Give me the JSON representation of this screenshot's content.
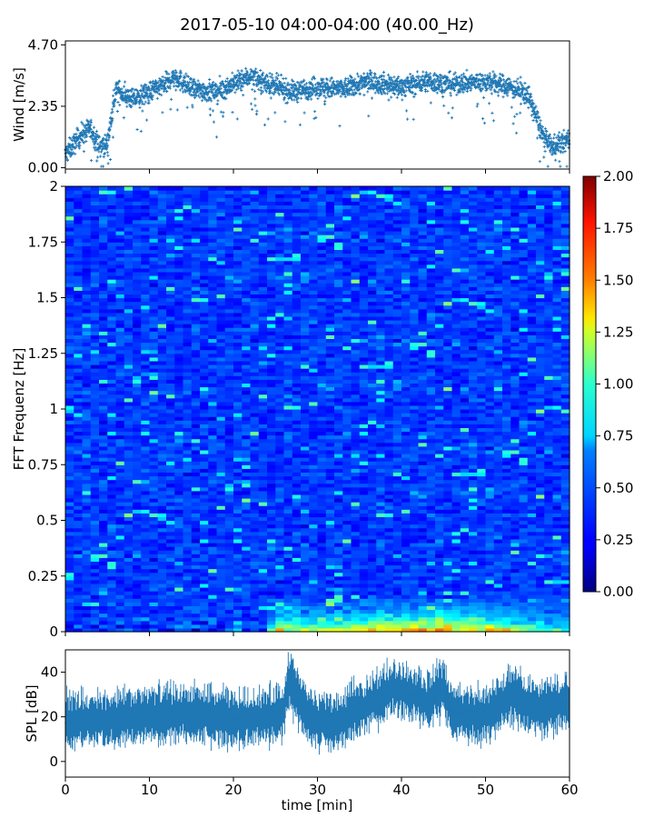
{
  "title": "2017-05-10 04:00-04:00 (40.00_Hz)",
  "chart_data": [
    {
      "type": "scatter",
      "name": "wind-panel",
      "ylabel": "Wind [m/s]",
      "ylim": [
        -0.05,
        4.85
      ],
      "xlim": [
        0,
        60
      ],
      "yticks": [
        0.0,
        2.35,
        4.7
      ],
      "ytick_labels": [
        "0.00",
        "2.35",
        "4.70"
      ],
      "xticks": [
        0,
        10,
        20,
        30,
        40,
        50,
        60
      ],
      "color": "#1f77b4",
      "points_per_min": 45,
      "profile": [
        {
          "x": 0,
          "y": 0.5
        },
        {
          "x": 2,
          "y": 1.3
        },
        {
          "x": 3,
          "y": 1.5
        },
        {
          "x": 4,
          "y": 0.8
        },
        {
          "x": 5,
          "y": 0.9
        },
        {
          "x": 6,
          "y": 3.0
        },
        {
          "x": 8,
          "y": 2.6
        },
        {
          "x": 10,
          "y": 2.9
        },
        {
          "x": 12,
          "y": 3.2
        },
        {
          "x": 13,
          "y": 3.5
        },
        {
          "x": 15,
          "y": 3.0
        },
        {
          "x": 18,
          "y": 2.9
        },
        {
          "x": 20,
          "y": 3.2
        },
        {
          "x": 22,
          "y": 3.5
        },
        {
          "x": 25,
          "y": 3.1
        },
        {
          "x": 27,
          "y": 2.9
        },
        {
          "x": 30,
          "y": 3.1
        },
        {
          "x": 33,
          "y": 3.0
        },
        {
          "x": 36,
          "y": 3.3
        },
        {
          "x": 40,
          "y": 3.1
        },
        {
          "x": 43,
          "y": 3.3
        },
        {
          "x": 46,
          "y": 3.2
        },
        {
          "x": 50,
          "y": 3.3
        },
        {
          "x": 53,
          "y": 3.1
        },
        {
          "x": 55,
          "y": 2.8
        },
        {
          "x": 56,
          "y": 2.0
        },
        {
          "x": 57,
          "y": 1.1
        },
        {
          "x": 58,
          "y": 0.8
        },
        {
          "x": 60,
          "y": 1.1
        }
      ]
    },
    {
      "type": "heatmap",
      "name": "spectrogram-panel",
      "ylabel": "FFT Frequenz [Hz]",
      "xlim": [
        0,
        60
      ],
      "ylim": [
        0,
        2
      ],
      "yticks": [
        0,
        0.25,
        0.5,
        0.75,
        1,
        1.25,
        1.5,
        1.75,
        2
      ],
      "ytick_labels": [
        "0",
        "0.25",
        "0.5",
        "0.75",
        "1",
        "1.25",
        "1.5",
        "1.75",
        "2"
      ],
      "xticks": [
        0,
        10,
        20,
        30,
        40,
        50,
        60
      ],
      "n_time_bins": 60,
      "n_freq_bins": 120,
      "colormap": "jet",
      "colorbar": {
        "vmin": 0,
        "vmax": 2,
        "ticks": [
          0.0,
          0.25,
          0.5,
          0.75,
          1.0,
          1.25,
          1.5,
          1.75,
          2.0
        ],
        "tick_labels": [
          "0.00",
          "0.25",
          "0.50",
          "0.75",
          "1.00",
          "1.25",
          "1.50",
          "1.75",
          "2.00"
        ]
      },
      "low_freq_activity": [
        {
          "x": 0,
          "level": 0.35
        },
        {
          "x": 24,
          "level": 0.4
        },
        {
          "x": 25,
          "level": 1.3
        },
        {
          "x": 30,
          "level": 1.1
        },
        {
          "x": 35,
          "level": 1.4
        },
        {
          "x": 45,
          "level": 1.6
        },
        {
          "x": 52,
          "level": 1.3
        },
        {
          "x": 57,
          "level": 0.9
        },
        {
          "x": 60,
          "level": 0.7
        }
      ]
    },
    {
      "type": "line",
      "name": "spl-panel",
      "ylabel": "SPL [dB]",
      "xlabel": "time [min]",
      "xlim": [
        0,
        60
      ],
      "ylim": [
        -7,
        50
      ],
      "yticks": [
        0,
        20,
        40
      ],
      "ytick_labels": [
        "0",
        "20",
        "40"
      ],
      "xticks": [
        0,
        10,
        20,
        30,
        40,
        50,
        60
      ],
      "xtick_labels": [
        "0",
        "10",
        "20",
        "30",
        "40",
        "50",
        "60"
      ],
      "color": "#1f77b4",
      "samples": 700,
      "profile": [
        {
          "x": 0,
          "y": 18
        },
        {
          "x": 5,
          "y": 19
        },
        {
          "x": 10,
          "y": 21
        },
        {
          "x": 15,
          "y": 22
        },
        {
          "x": 20,
          "y": 19
        },
        {
          "x": 24,
          "y": 20
        },
        {
          "x": 26,
          "y": 23
        },
        {
          "x": 26.5,
          "y": 37
        },
        {
          "x": 27.5,
          "y": 30
        },
        {
          "x": 29,
          "y": 20
        },
        {
          "x": 32,
          "y": 17
        },
        {
          "x": 35,
          "y": 24
        },
        {
          "x": 37,
          "y": 28
        },
        {
          "x": 39,
          "y": 33
        },
        {
          "x": 41,
          "y": 31
        },
        {
          "x": 43,
          "y": 27
        },
        {
          "x": 45,
          "y": 33
        },
        {
          "x": 46,
          "y": 22
        },
        {
          "x": 50,
          "y": 21
        },
        {
          "x": 53,
          "y": 30
        },
        {
          "x": 56,
          "y": 24
        },
        {
          "x": 60,
          "y": 27
        }
      ]
    }
  ]
}
